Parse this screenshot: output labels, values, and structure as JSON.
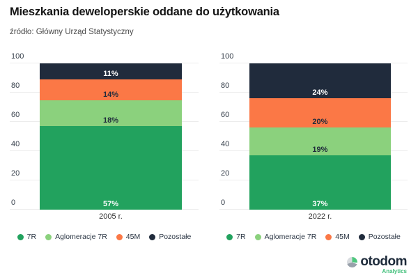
{
  "header": {
    "title": "Mieszkania deweloperskie oddane do użytkowania",
    "source": "źródło: Główny Urząd Statystyczny"
  },
  "colors": {
    "green_dark": "#22a25e",
    "green_light": "#8bd17d",
    "orange": "#fb7846",
    "navy": "#202b3c",
    "grid": "#ececec",
    "axis_text": "#333c48"
  },
  "legend": [
    {
      "label": "7R",
      "color": "#22a25e"
    },
    {
      "label": "Aglomeracje 7R",
      "color": "#8bd17d"
    },
    {
      "label": "45M",
      "color": "#fb7846"
    },
    {
      "label": "Pozostałe",
      "color": "#202b3c"
    }
  ],
  "chart_data": [
    {
      "type": "bar",
      "stacked": true,
      "xlabel": "2005 r.",
      "categories": [
        "2005 r."
      ],
      "ylim": [
        0,
        100
      ],
      "yticks": [
        0,
        20,
        40,
        60,
        80,
        100
      ],
      "grid": true,
      "legend_position": "bottom",
      "series": [
        {
          "name": "7R",
          "value": 57,
          "label": "57%",
          "color": "#22a25e",
          "label_color": "#ffffff"
        },
        {
          "name": "Aglomeracje 7R",
          "value": 18,
          "label": "18%",
          "color": "#8bd17d",
          "label_color": "#202b3c"
        },
        {
          "name": "45M",
          "value": 14,
          "label": "14%",
          "color": "#fb7846",
          "label_color": "#202b3c"
        },
        {
          "name": "Pozostałe",
          "value": 11,
          "label": "11%",
          "color": "#202b3c",
          "label_color": "#ffffff"
        }
      ]
    },
    {
      "type": "bar",
      "stacked": true,
      "xlabel": "2022 r.",
      "categories": [
        "2022 r."
      ],
      "ylim": [
        0,
        100
      ],
      "yticks": [
        0,
        20,
        40,
        60,
        80,
        100
      ],
      "grid": true,
      "legend_position": "bottom",
      "series": [
        {
          "name": "7R",
          "value": 37,
          "label": "37%",
          "color": "#22a25e",
          "label_color": "#ffffff"
        },
        {
          "name": "Aglomeracje 7R",
          "value": 19,
          "label": "19%",
          "color": "#8bd17d",
          "label_color": "#202b3c"
        },
        {
          "name": "45M",
          "value": 20,
          "label": "20%",
          "color": "#fb7846",
          "label_color": "#202b3c"
        },
        {
          "name": "Pozostałe",
          "value": 24,
          "label": "24%",
          "color": "#202b3c",
          "label_color": "#ffffff"
        }
      ]
    }
  ],
  "logo": {
    "brand": "otodom",
    "sub": "Analytics"
  }
}
